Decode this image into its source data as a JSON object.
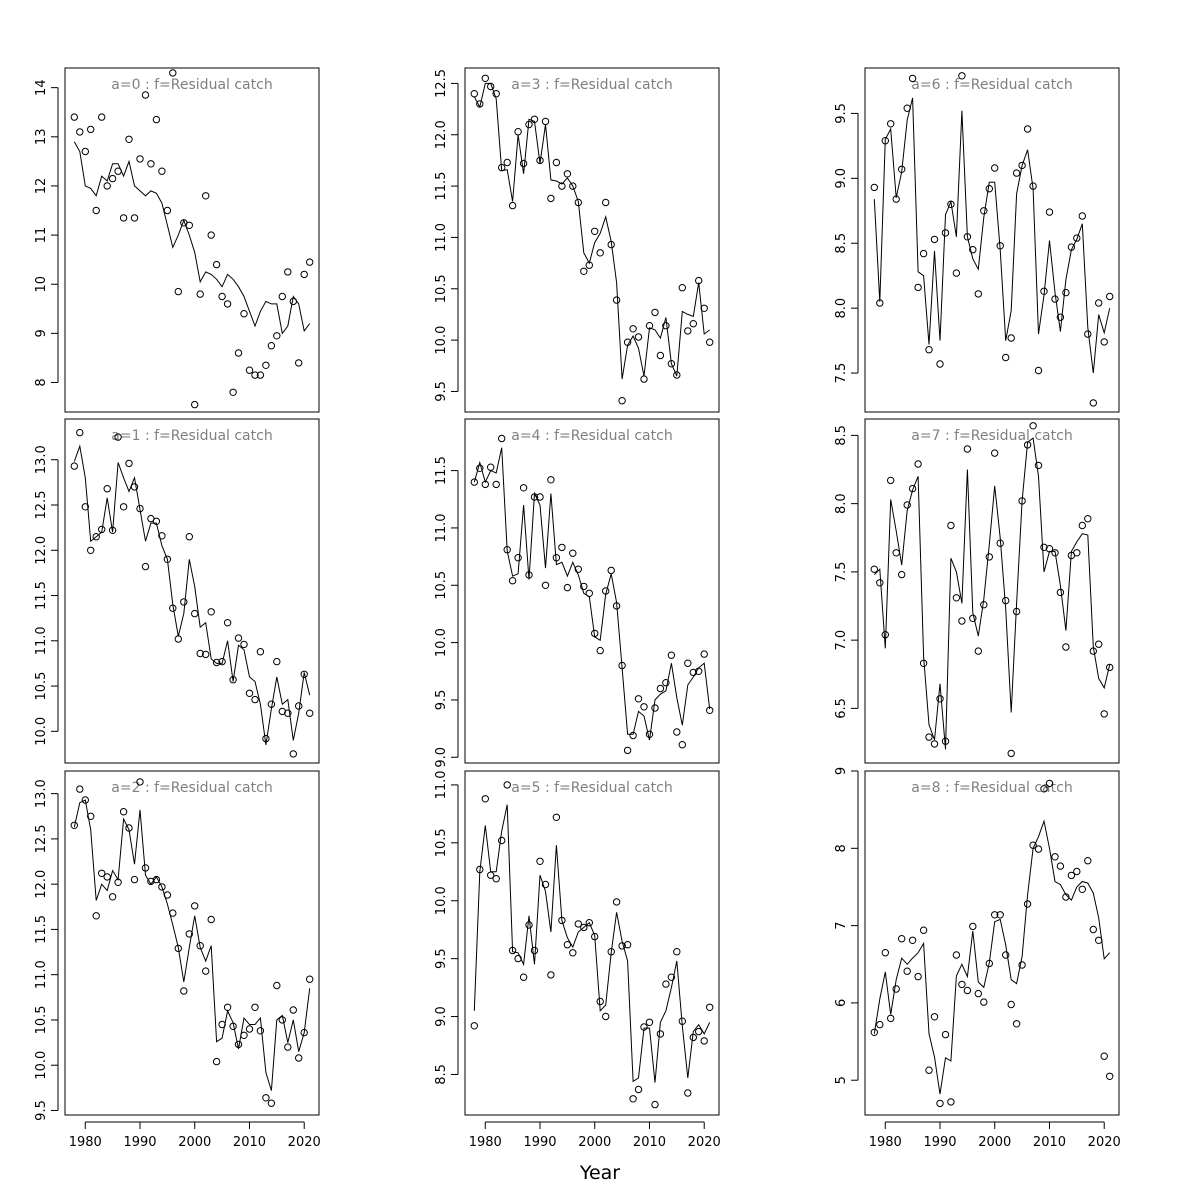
{
  "chart_data": {
    "type": "scatter",
    "layout": "3x3 grid, panels filled by column",
    "xlabel": "Year",
    "x": [
      1978,
      1979,
      1980,
      1981,
      1982,
      1983,
      1984,
      1985,
      1986,
      1987,
      1988,
      1989,
      1990,
      1991,
      1992,
      1993,
      1994,
      1995,
      1996,
      1997,
      1998,
      1999,
      2000,
      2001,
      2002,
      2003,
      2004,
      2005,
      2006,
      2007,
      2008,
      2009,
      2010,
      2011,
      2012,
      2013,
      2014,
      2015,
      2016,
      2017,
      2018,
      2019,
      2020,
      2021
    ],
    "xticks": [
      1980,
      1990,
      2000,
      2010,
      2020
    ],
    "panels": [
      {
        "title": "a=0  :  f=Residual catch",
        "ylim": [
          7.4,
          14.4
        ],
        "yticks": [
          8,
          9,
          10,
          11,
          12,
          13,
          14
        ],
        "observed": [
          13.4,
          13.1,
          12.7,
          13.15,
          11.5,
          13.4,
          12.0,
          12.15,
          12.3,
          11.35,
          12.95,
          11.35,
          12.55,
          13.85,
          12.45,
          13.35,
          12.3,
          11.5,
          14.3,
          9.85,
          11.25,
          11.2,
          7.55,
          9.8,
          11.8,
          11.0,
          10.4,
          9.75,
          9.6,
          7.8,
          8.6,
          9.4,
          8.25,
          8.15,
          8.15,
          8.35,
          8.75,
          8.95,
          9.75,
          10.25,
          9.65,
          8.4,
          10.2,
          10.45
        ],
        "fitted": [
          12.9,
          12.7,
          12.0,
          11.95,
          11.8,
          12.2,
          12.1,
          12.45,
          12.45,
          12.2,
          12.5,
          12.0,
          11.9,
          11.8,
          11.9,
          11.85,
          11.65,
          11.2,
          10.75,
          11.0,
          11.3,
          11.0,
          10.65,
          10.05,
          10.25,
          10.2,
          10.1,
          9.95,
          10.2,
          10.1,
          9.95,
          9.75,
          9.45,
          9.15,
          9.45,
          9.65,
          9.6,
          9.6,
          9.0,
          9.15,
          9.75,
          9.6,
          9.05,
          9.2
        ]
      },
      {
        "title": "a=1  :  f=Residual catch",
        "ylim": [
          9.65,
          13.45
        ],
        "yticks": [
          10.0,
          10.5,
          11.0,
          11.5,
          12.0,
          12.5,
          13.0
        ],
        "observed": [
          12.93,
          13.3,
          12.48,
          12.0,
          12.15,
          12.23,
          12.68,
          12.22,
          13.25,
          12.48,
          12.96,
          12.7,
          12.46,
          11.82,
          12.35,
          12.32,
          12.16,
          11.9,
          11.36,
          11.02,
          11.43,
          12.15,
          11.3,
          10.86,
          10.85,
          11.32,
          10.76,
          10.77,
          11.2,
          10.57,
          11.03,
          10.96,
          10.42,
          10.35,
          10.88,
          9.92,
          10.3,
          10.77,
          10.22,
          10.2,
          9.75,
          10.28,
          10.63,
          10.2
        ],
        "fitted": [
          12.98,
          13.15,
          12.8,
          12.1,
          12.15,
          12.2,
          12.58,
          12.2,
          12.97,
          12.8,
          12.65,
          12.8,
          12.45,
          12.1,
          12.3,
          12.3,
          12.05,
          11.9,
          11.4,
          11.05,
          11.3,
          11.9,
          11.6,
          11.15,
          11.2,
          10.8,
          10.75,
          10.75,
          11.0,
          10.55,
          10.95,
          10.9,
          10.6,
          10.55,
          10.3,
          9.85,
          10.25,
          10.6,
          10.3,
          10.35,
          9.9,
          10.2,
          10.65,
          10.4
        ]
      },
      {
        "title": "a=2  :  f=Residual catch",
        "ylim": [
          9.45,
          13.25
        ],
        "yticks": [
          9.5,
          10.0,
          10.5,
          11.0,
          11.5,
          12.0,
          12.5,
          13.0
        ],
        "observed": [
          12.65,
          13.05,
          12.93,
          12.75,
          11.65,
          12.12,
          12.08,
          11.86,
          12.02,
          12.8,
          12.62,
          12.05,
          13.13,
          12.18,
          12.03,
          12.05,
          11.97,
          11.88,
          11.68,
          11.29,
          10.82,
          11.45,
          11.76,
          11.32,
          11.04,
          11.61,
          10.04,
          10.45,
          10.64,
          10.43,
          10.23,
          10.33,
          10.4,
          10.64,
          10.38,
          9.64,
          9.58,
          10.88,
          10.5,
          10.2,
          10.61,
          10.08,
          10.36,
          10.95
        ],
        "fitted": [
          12.63,
          12.9,
          12.93,
          12.6,
          11.82,
          12.0,
          11.93,
          12.15,
          12.05,
          12.72,
          12.6,
          12.22,
          12.82,
          12.1,
          12.0,
          12.08,
          11.97,
          11.78,
          11.55,
          11.3,
          10.92,
          11.3,
          11.65,
          11.3,
          11.15,
          11.32,
          10.26,
          10.3,
          10.6,
          10.47,
          10.18,
          10.52,
          10.45,
          10.45,
          10.52,
          9.92,
          9.72,
          10.5,
          10.55,
          10.25,
          10.5,
          10.15,
          10.36,
          10.85
        ]
      },
      {
        "title": "a=3  :  f=Residual catch",
        "ylim": [
          9.3,
          12.65
        ],
        "yticks": [
          9.5,
          10.0,
          10.5,
          11.0,
          11.5,
          12.0,
          12.5
        ],
        "observed": [
          12.4,
          12.3,
          12.55,
          12.47,
          12.4,
          11.68,
          11.73,
          11.31,
          12.03,
          11.72,
          12.1,
          12.15,
          11.75,
          12.13,
          11.38,
          11.73,
          11.5,
          11.62,
          11.5,
          11.34,
          10.67,
          10.73,
          11.06,
          10.85,
          11.34,
          10.93,
          10.39,
          9.41,
          9.98,
          10.11,
          10.03,
          9.62,
          10.14,
          10.27,
          9.85,
          10.14,
          9.77,
          9.66,
          10.51,
          10.09,
          10.16,
          10.58,
          10.31,
          9.98
        ],
        "fitted": [
          12.37,
          12.27,
          12.5,
          12.5,
          12.35,
          11.65,
          11.66,
          11.35,
          12.0,
          11.62,
          12.15,
          12.13,
          11.72,
          12.1,
          11.56,
          11.55,
          11.52,
          11.58,
          11.5,
          11.35,
          10.85,
          10.75,
          10.95,
          11.04,
          11.2,
          10.96,
          10.56,
          9.62,
          9.95,
          10.04,
          9.92,
          9.65,
          10.12,
          10.1,
          10.02,
          10.22,
          9.77,
          9.65,
          10.28,
          10.25,
          10.23,
          10.56,
          10.06,
          10.1
        ]
      },
      {
        "title": "a=4  :  f=Residual catch",
        "ylim": [
          8.95,
          11.95
        ],
        "yticks": [
          9.0,
          9.5,
          10.0,
          10.5,
          11.0,
          11.5
        ],
        "observed": [
          11.4,
          11.52,
          11.38,
          11.53,
          11.38,
          11.78,
          10.81,
          10.54,
          10.74,
          11.35,
          10.59,
          11.27,
          11.27,
          10.5,
          11.42,
          10.74,
          10.83,
          10.48,
          10.78,
          10.64,
          10.49,
          10.43,
          10.08,
          9.93,
          10.45,
          10.63,
          10.32,
          9.8,
          9.06,
          9.19,
          9.51,
          9.44,
          9.2,
          9.43,
          9.6,
          9.65,
          9.89,
          9.22,
          9.11,
          9.82,
          9.74,
          9.75,
          9.9,
          9.41
        ],
        "fitted": [
          11.4,
          11.57,
          11.4,
          11.5,
          11.48,
          11.7,
          10.8,
          10.58,
          10.6,
          11.2,
          10.55,
          11.3,
          11.2,
          10.65,
          11.3,
          10.68,
          10.7,
          10.58,
          10.7,
          10.59,
          10.43,
          10.4,
          10.05,
          10.02,
          10.42,
          10.6,
          10.35,
          9.78,
          9.2,
          9.2,
          9.4,
          9.36,
          9.15,
          9.5,
          9.55,
          9.58,
          9.82,
          9.52,
          9.28,
          9.63,
          9.7,
          9.78,
          9.82,
          9.42
        ]
      },
      {
        "title": "a=5  :  f=Residual catch",
        "ylim": [
          8.15,
          11.12
        ],
        "yticks": [
          8.5,
          9.0,
          9.5,
          10.0,
          10.5,
          11.0
        ],
        "observed": [
          8.92,
          10.27,
          10.88,
          10.22,
          10.19,
          10.52,
          11.0,
          9.57,
          9.5,
          9.34,
          9.79,
          9.57,
          10.34,
          10.14,
          9.36,
          10.72,
          9.83,
          9.62,
          9.55,
          9.8,
          9.77,
          9.81,
          9.69,
          9.13,
          9.0,
          9.56,
          9.99,
          9.61,
          9.62,
          8.29,
          8.37,
          8.91,
          8.95,
          8.24,
          8.85,
          9.28,
          9.34,
          9.56,
          8.96,
          8.34,
          8.82,
          8.87,
          8.79,
          9.08
        ],
        "fitted": [
          9.05,
          10.25,
          10.65,
          10.25,
          10.25,
          10.6,
          10.83,
          9.56,
          9.55,
          9.45,
          9.87,
          9.45,
          10.22,
          10.08,
          9.73,
          10.48,
          9.83,
          9.68,
          9.6,
          9.73,
          9.77,
          9.81,
          9.7,
          9.05,
          9.1,
          9.55,
          9.9,
          9.65,
          9.48,
          8.44,
          8.47,
          8.9,
          8.9,
          8.43,
          8.95,
          9.05,
          9.25,
          9.48,
          8.92,
          8.47,
          8.87,
          8.93,
          8.85,
          8.95
        ]
      },
      {
        "title": "a=6  :  f=Residual catch",
        "ylim": [
          7.2,
          9.85
        ],
        "yticks": [
          7.5,
          8.0,
          8.5,
          9.0,
          9.5
        ],
        "observed": [
          8.93,
          8.04,
          9.29,
          9.42,
          8.84,
          9.07,
          9.54,
          9.77,
          8.16,
          8.42,
          7.68,
          8.53,
          7.57,
          8.58,
          8.8,
          8.27,
          9.79,
          8.55,
          8.45,
          8.11,
          8.75,
          8.92,
          9.08,
          8.48,
          7.62,
          7.77,
          9.04,
          9.1,
          9.38,
          8.94,
          7.52,
          8.13,
          8.74,
          8.07,
          7.93,
          8.12,
          8.47,
          8.54,
          8.71,
          7.8,
          7.27,
          8.04,
          7.74,
          8.09
        ],
        "fitted": [
          8.84,
          8.05,
          9.3,
          9.38,
          8.85,
          9.05,
          9.45,
          9.62,
          8.28,
          8.25,
          7.72,
          8.44,
          7.75,
          8.72,
          8.82,
          8.55,
          9.52,
          8.55,
          8.38,
          8.3,
          8.7,
          8.97,
          8.97,
          8.45,
          7.75,
          7.98,
          8.88,
          9.1,
          9.22,
          8.92,
          7.8,
          8.1,
          8.52,
          8.12,
          7.82,
          8.22,
          8.45,
          8.53,
          8.65,
          7.85,
          7.5,
          7.95,
          7.81,
          8.0
        ]
      },
      {
        "title": "a=7  :  f=Residual catch",
        "ylim": [
          6.1,
          8.62
        ],
        "yticks": [
          6.5,
          7.0,
          7.5,
          8.0,
          8.5
        ],
        "observed": [
          7.52,
          7.42,
          7.04,
          8.17,
          7.64,
          7.48,
          7.99,
          8.11,
          8.29,
          6.83,
          6.29,
          6.24,
          6.57,
          6.26,
          7.84,
          7.31,
          7.14,
          8.4,
          7.16,
          6.92,
          7.26,
          7.61,
          8.37,
          7.71,
          7.29,
          6.17,
          7.21,
          8.02,
          8.43,
          8.57,
          8.28,
          7.68,
          7.67,
          7.64,
          7.35,
          6.95,
          7.62,
          7.64,
          7.84,
          7.89,
          6.92,
          6.97,
          6.46,
          6.8
        ],
        "fitted": [
          7.48,
          7.52,
          6.94,
          8.03,
          7.8,
          7.55,
          7.95,
          8.1,
          8.2,
          6.88,
          6.38,
          6.27,
          6.68,
          6.2,
          7.6,
          7.5,
          7.27,
          8.25,
          7.2,
          7.03,
          7.3,
          7.7,
          8.13,
          7.75,
          7.23,
          6.47,
          7.27,
          8.02,
          8.45,
          8.48,
          8.2,
          7.5,
          7.65,
          7.65,
          7.4,
          7.07,
          7.65,
          7.72,
          7.78,
          7.77,
          6.95,
          6.72,
          6.65,
          6.82
        ]
      },
      {
        "title": "a=8  :  f=Residual catch",
        "ylim": [
          4.55,
          9.0
        ],
        "yticks": [
          5,
          6,
          7,
          8,
          9
        ],
        "observed": [
          5.62,
          5.72,
          6.65,
          5.8,
          6.18,
          6.83,
          6.41,
          6.81,
          6.34,
          6.94,
          5.13,
          5.82,
          4.7,
          5.59,
          4.72,
          6.62,
          6.24,
          6.16,
          6.99,
          6.12,
          6.01,
          6.51,
          7.14,
          7.14,
          6.62,
          5.98,
          5.73,
          6.49,
          7.28,
          8.04,
          7.99,
          8.77,
          8.84,
          7.89,
          7.77,
          7.37,
          7.65,
          7.7,
          7.47,
          7.84,
          6.95,
          6.81,
          5.31,
          5.05
        ],
        "fitted": [
          5.6,
          6.05,
          6.4,
          5.85,
          6.3,
          6.58,
          6.5,
          6.58,
          6.65,
          6.77,
          5.6,
          5.3,
          4.82,
          5.29,
          5.25,
          6.35,
          6.5,
          6.34,
          6.93,
          6.27,
          6.2,
          6.52,
          7.05,
          7.08,
          6.75,
          6.3,
          6.25,
          6.6,
          7.4,
          8.0,
          8.15,
          8.35,
          8.0,
          7.57,
          7.53,
          7.4,
          7.33,
          7.5,
          7.57,
          7.55,
          7.42,
          7.1,
          6.57,
          6.65
        ]
      }
    ]
  }
}
